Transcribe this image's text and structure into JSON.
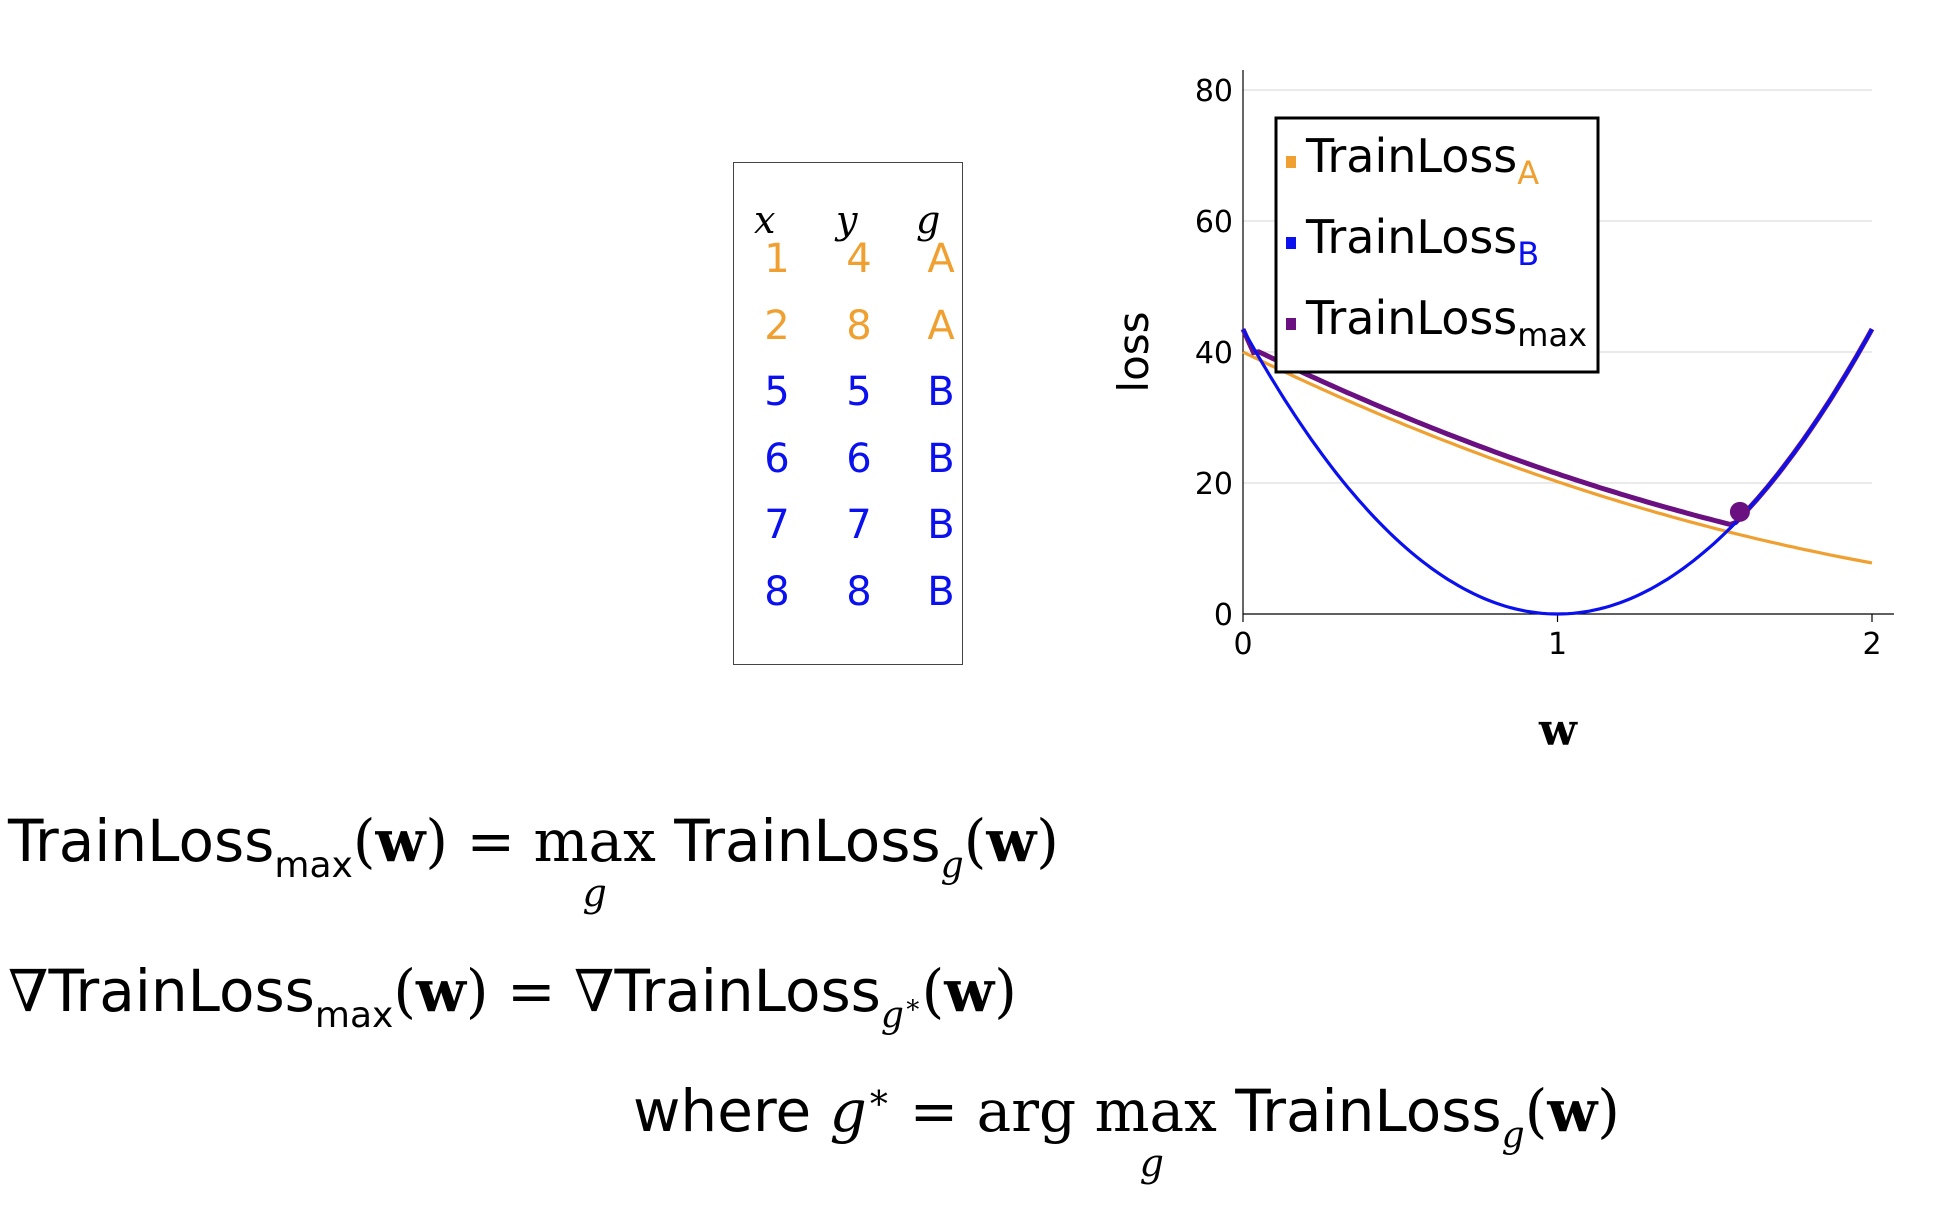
{
  "table": {
    "headers": [
      "x",
      "y",
      "g"
    ],
    "rows": [
      {
        "x": "1",
        "y": "4",
        "g": "A",
        "color": "#f0a030"
      },
      {
        "x": "2",
        "y": "8",
        "g": "A",
        "color": "#f0a030"
      },
      {
        "x": "5",
        "y": "5",
        "g": "B",
        "color": "#0a10ee"
      },
      {
        "x": "6",
        "y": "6",
        "g": "B",
        "color": "#0a10ee"
      },
      {
        "x": "7",
        "y": "7",
        "g": "B",
        "color": "#0a10ee"
      },
      {
        "x": "8",
        "y": "8",
        "g": "B",
        "color": "#0a10ee"
      }
    ]
  },
  "chart_data": {
    "type": "line",
    "xlabel": "w",
    "ylabel": "loss",
    "xlim": [
      0,
      2
    ],
    "ylim": [
      0,
      80
    ],
    "xticks": [
      "0",
      "1",
      "2"
    ],
    "yticks": [
      "0",
      "20",
      "40",
      "60",
      "80"
    ],
    "grid": "horizontal",
    "legend_position": "top-left",
    "series": [
      {
        "name": "TrainLoss",
        "subscript": "A",
        "color": "#f0a030",
        "x": [
          0,
          0.25,
          0.5,
          0.75,
          1,
          1.25,
          1.5,
          1.75,
          2
        ],
        "y": [
          40,
          34.25,
          29,
          24.25,
          20,
          16.25,
          13,
          10.25,
          8
        ]
      },
      {
        "name": "TrainLoss",
        "subscript": "B",
        "color": "#0a10ee",
        "x": [
          0,
          0.25,
          0.5,
          0.75,
          1,
          1.25,
          1.5,
          1.75,
          2
        ],
        "y": [
          43.5,
          24.47,
          10.88,
          2.72,
          0,
          2.72,
          10.88,
          24.47,
          43.5
        ]
      },
      {
        "name": "TrainLoss",
        "subscript": "max",
        "color": "#6a1080",
        "x": [
          0,
          0.04,
          0.25,
          0.5,
          0.75,
          1,
          1.25,
          1.5,
          1.58,
          1.75,
          2
        ],
        "y": [
          43.5,
          39.2,
          34.25,
          29,
          24.25,
          20,
          16.25,
          13,
          15.6,
          24.47,
          43.5
        ]
      }
    ],
    "marker": {
      "x": 1.58,
      "y": 15.6,
      "color": "#6a1080"
    }
  },
  "equations": {
    "eq1": {
      "lhs": "TrainLoss",
      "lhs_sub": "max",
      "arg": "w",
      "op": "max",
      "op_under": "g",
      "rhs": "TrainLoss",
      "rhs_sub": "g"
    },
    "eq2": {
      "nabla": "∇",
      "lhs": "TrainLoss",
      "lhs_sub": "max",
      "arg": "w",
      "rhs": "TrainLoss",
      "rhs_sub": "g",
      "rhs_sup": "∗"
    },
    "eq3": {
      "where": "where",
      "gstar": "g",
      "star": "∗",
      "op": "arg max",
      "op_under": "g",
      "rhs": "TrainLoss",
      "rhs_sub": "g",
      "arg": "w"
    }
  }
}
